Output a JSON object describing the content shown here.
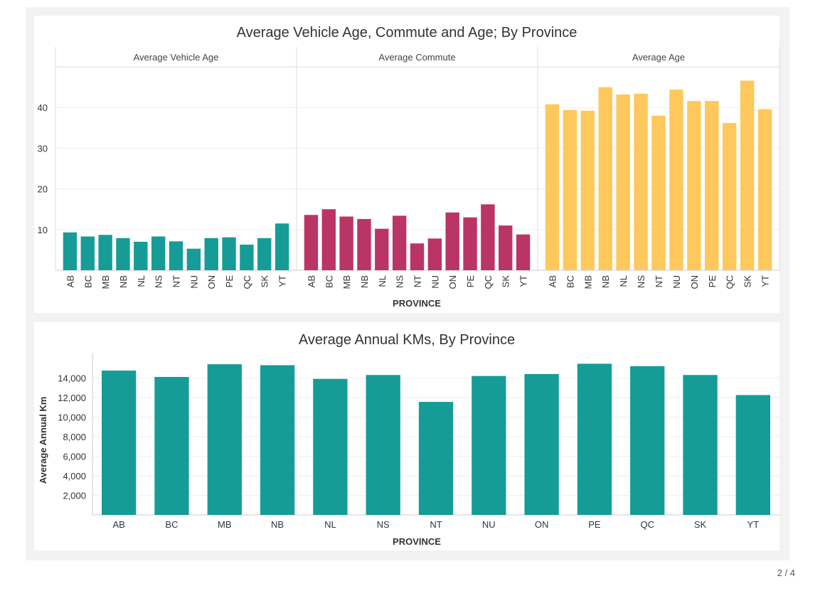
{
  "page_indicator": "2 / 4",
  "colors": {
    "vehicle_age": "#169c97",
    "commute": "#bb3466",
    "age": "#fec85c",
    "annual_km": "#169c97"
  },
  "chart_data": [
    {
      "type": "bar",
      "title": "Average Vehicle Age, Commute and Age; By Province",
      "xlabel": "PROVINCE",
      "ylabel": "",
      "ylim": [
        0,
        50
      ],
      "yticks": [
        "10",
        "20",
        "30",
        "40"
      ],
      "grid": true,
      "categories": [
        "AB",
        "BC",
        "MB",
        "NB",
        "NL",
        "NS",
        "NT",
        "NU",
        "ON",
        "PE",
        "QC",
        "SK",
        "YT"
      ],
      "series": [
        {
          "name": "Average Vehicle Age",
          "values": [
            9.3,
            8.3,
            8.7,
            7.9,
            7.0,
            8.3,
            7.1,
            5.3,
            7.9,
            8.1,
            6.3,
            7.9,
            11.5
          ]
        },
        {
          "name": "Average Commute",
          "values": [
            13.6,
            15.0,
            13.2,
            12.6,
            10.2,
            13.4,
            6.6,
            7.8,
            14.2,
            13.0,
            16.2,
            11.0,
            8.8
          ]
        },
        {
          "name": "Average Age",
          "values": [
            40.8,
            39.4,
            39.2,
            45.0,
            43.2,
            43.4,
            38.0,
            44.4,
            41.6,
            41.6,
            36.2,
            46.6,
            39.6
          ]
        }
      ]
    },
    {
      "type": "bar",
      "title": "Average Annual KMs, By Province",
      "xlabel": "PROVINCE",
      "ylabel": "Average Annual Km",
      "ylim": [
        0,
        16500
      ],
      "yticks": [
        "2,000",
        "4,000",
        "6,000",
        "8,000",
        "10,000",
        "12,000",
        "14,000"
      ],
      "grid": true,
      "categories": [
        "AB",
        "BC",
        "MB",
        "NB",
        "NL",
        "NS",
        "NT",
        "NU",
        "ON",
        "PE",
        "QC",
        "SK",
        "YT"
      ],
      "values": [
        14750,
        14100,
        15400,
        15300,
        13900,
        14300,
        11550,
        14200,
        14400,
        15450,
        15200,
        14300,
        12250
      ]
    }
  ]
}
